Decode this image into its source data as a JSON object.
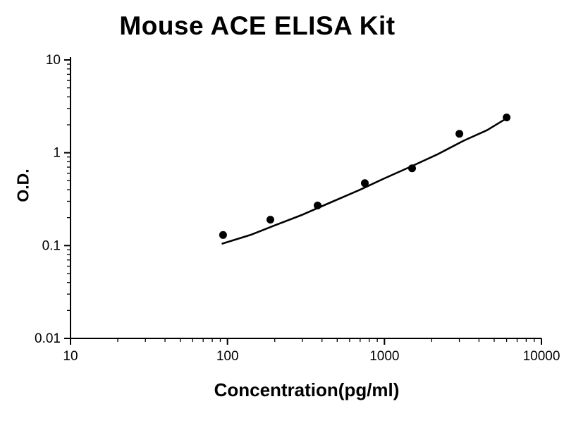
{
  "page": {
    "background": "#ffffff"
  },
  "chart_data": {
    "type": "scatter",
    "title": "Mouse ACE ELISA Kit",
    "xlabel": "Concentration(pg/ml)",
    "ylabel": "O.D.",
    "x_scale": "log",
    "y_scale": "log",
    "xlim": [
      10,
      10000
    ],
    "ylim": [
      0.01,
      10
    ],
    "grid": false,
    "legend": "none",
    "x_ticks": [
      {
        "value": 10,
        "label": "10"
      },
      {
        "value": 100,
        "label": "100"
      },
      {
        "value": 1000,
        "label": "1000"
      },
      {
        "value": 10000,
        "label": "10000"
      }
    ],
    "y_ticks": [
      {
        "value": 0.01,
        "label": "0.01"
      },
      {
        "value": 0.1,
        "label": "0.1"
      },
      {
        "value": 1,
        "label": "1"
      },
      {
        "value": 10,
        "label": "10"
      }
    ],
    "points": [
      [
        93.75,
        0.13
      ],
      [
        187.5,
        0.19
      ],
      [
        375,
        0.27
      ],
      [
        750,
        0.47
      ],
      [
        1500,
        0.68
      ],
      [
        3000,
        1.6
      ],
      [
        6000,
        2.4
      ]
    ],
    "fit_curve": [
      [
        93,
        0.105
      ],
      [
        140,
        0.13
      ],
      [
        200,
        0.165
      ],
      [
        300,
        0.215
      ],
      [
        450,
        0.29
      ],
      [
        700,
        0.4
      ],
      [
        1000,
        0.53
      ],
      [
        1500,
        0.72
      ],
      [
        2200,
        0.97
      ],
      [
        3200,
        1.35
      ],
      [
        4500,
        1.75
      ],
      [
        6000,
        2.35
      ]
    ],
    "colors": {
      "axis": "#000000",
      "line": "#000000",
      "marker": "#000000",
      "tick_text": "#000000"
    }
  }
}
